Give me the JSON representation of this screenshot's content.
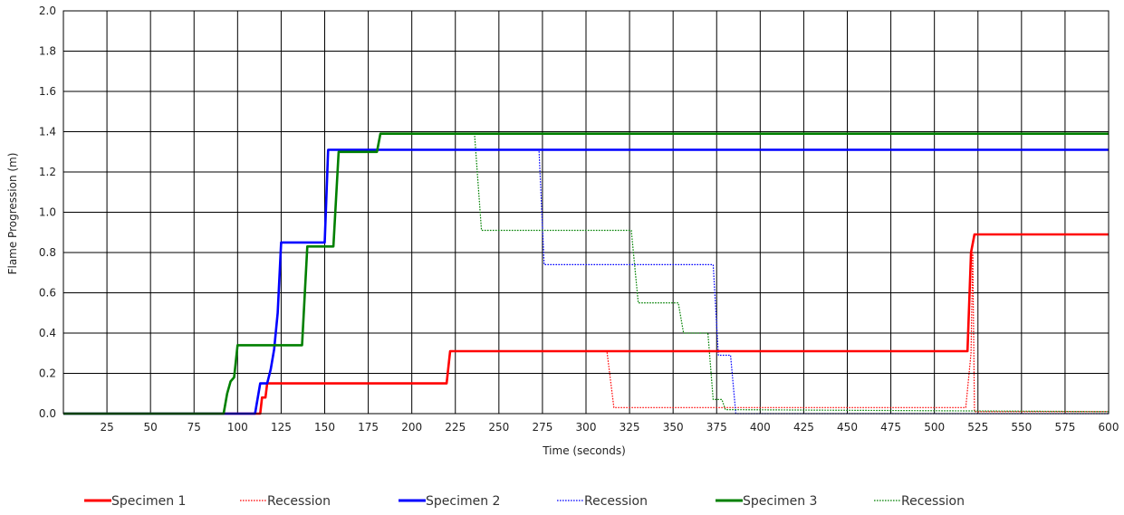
{
  "chart_data": {
    "type": "line",
    "title": "",
    "xlabel": "Time (seconds)",
    "ylabel": "Flame Progression (m)",
    "xlim": [
      0,
      600
    ],
    "ylim": [
      0,
      2.0
    ],
    "x_ticks": [
      25,
      50,
      75,
      100,
      125,
      150,
      175,
      200,
      225,
      250,
      275,
      300,
      325,
      350,
      375,
      400,
      425,
      450,
      475,
      500,
      525,
      550,
      575,
      600
    ],
    "x_tick_labels": [
      "25",
      "50",
      "75",
      "100",
      "125",
      "150",
      "175",
      "200",
      "225",
      "250",
      "275",
      "300",
      "325",
      "350",
      "375",
      "400",
      "425",
      "450",
      "475",
      "500",
      "525",
      "550",
      "575",
      "600"
    ],
    "y_ticks": [
      0,
      0.2,
      0.4,
      0.6,
      0.8,
      1.0,
      1.2,
      1.4,
      1.6,
      1.8,
      2.0
    ],
    "y_tick_labels": [
      "0.0",
      "0.2",
      "0.4",
      "0.6",
      "0.8",
      "1.0",
      "1.2",
      "1.4",
      "1.6",
      "1.8",
      "2.0"
    ],
    "grid": true,
    "legend_position": "bottom",
    "series": [
      {
        "name": "Specimen 1",
        "color": "#ff0000",
        "style": "solid",
        "points": [
          [
            0,
            0
          ],
          [
            113,
            0
          ],
          [
            114,
            0.08
          ],
          [
            116,
            0.08
          ],
          [
            117,
            0.15
          ],
          [
            220,
            0.15
          ],
          [
            222,
            0.31
          ],
          [
            519,
            0.31
          ],
          [
            521,
            0.8
          ],
          [
            523,
            0.89
          ],
          [
            600,
            0.89
          ]
        ]
      },
      {
        "name": "Recession",
        "color": "#ff0000",
        "style": "dotted",
        "points": [
          [
            0,
            0
          ],
          [
            113,
            0
          ],
          [
            114,
            0.08
          ],
          [
            116,
            0.08
          ],
          [
            117,
            0.15
          ],
          [
            220,
            0.15
          ],
          [
            222,
            0.31
          ],
          [
            312,
            0.31
          ],
          [
            316,
            0.03
          ],
          [
            518,
            0.03
          ],
          [
            521,
            0.3
          ],
          [
            522,
            0.8
          ],
          [
            523,
            0.01
          ],
          [
            600,
            0.01
          ]
        ]
      },
      {
        "name": "Specimen 2",
        "color": "#0000ff",
        "style": "solid",
        "points": [
          [
            0,
            0
          ],
          [
            110,
            0
          ],
          [
            113,
            0.15
          ],
          [
            117,
            0.15
          ],
          [
            119,
            0.22
          ],
          [
            121,
            0.32
          ],
          [
            123,
            0.5
          ],
          [
            125,
            0.85
          ],
          [
            150,
            0.85
          ],
          [
            152,
            1.31
          ],
          [
            600,
            1.31
          ]
        ]
      },
      {
        "name": "Recession",
        "color": "#0000ff",
        "style": "dotted",
        "points": [
          [
            0,
            0
          ],
          [
            110,
            0
          ],
          [
            113,
            0.15
          ],
          [
            117,
            0.15
          ],
          [
            119,
            0.22
          ],
          [
            121,
            0.32
          ],
          [
            123,
            0.5
          ],
          [
            125,
            0.85
          ],
          [
            150,
            0.85
          ],
          [
            152,
            1.31
          ],
          [
            273,
            1.31
          ],
          [
            276,
            0.74
          ],
          [
            373,
            0.74
          ],
          [
            376,
            0.29
          ],
          [
            383,
            0.29
          ],
          [
            386,
            0
          ],
          [
            600,
            0
          ]
        ]
      },
      {
        "name": "Specimen 3",
        "color": "#008000",
        "style": "solid",
        "points": [
          [
            0,
            0
          ],
          [
            92,
            0
          ],
          [
            94,
            0.1
          ],
          [
            96,
            0.16
          ],
          [
            98,
            0.18
          ],
          [
            100,
            0.34
          ],
          [
            137,
            0.34
          ],
          [
            140,
            0.83
          ],
          [
            155,
            0.83
          ],
          [
            158,
            1.3
          ],
          [
            180,
            1.3
          ],
          [
            182,
            1.39
          ],
          [
            600,
            1.39
          ]
        ]
      },
      {
        "name": "Recession",
        "color": "#008000",
        "style": "dotted",
        "points": [
          [
            0,
            0
          ],
          [
            92,
            0
          ],
          [
            94,
            0.1
          ],
          [
            96,
            0.16
          ],
          [
            98,
            0.18
          ],
          [
            100,
            0.34
          ],
          [
            137,
            0.34
          ],
          [
            140,
            0.83
          ],
          [
            155,
            0.83
          ],
          [
            158,
            1.3
          ],
          [
            180,
            1.3
          ],
          [
            182,
            1.39
          ],
          [
            236,
            1.39
          ],
          [
            240,
            0.91
          ],
          [
            326,
            0.91
          ],
          [
            330,
            0.55
          ],
          [
            353,
            0.55
          ],
          [
            356,
            0.4
          ],
          [
            370,
            0.4
          ],
          [
            373,
            0.07
          ],
          [
            378,
            0.07
          ],
          [
            380,
            0.02
          ],
          [
            600,
            0.01
          ]
        ]
      }
    ]
  }
}
